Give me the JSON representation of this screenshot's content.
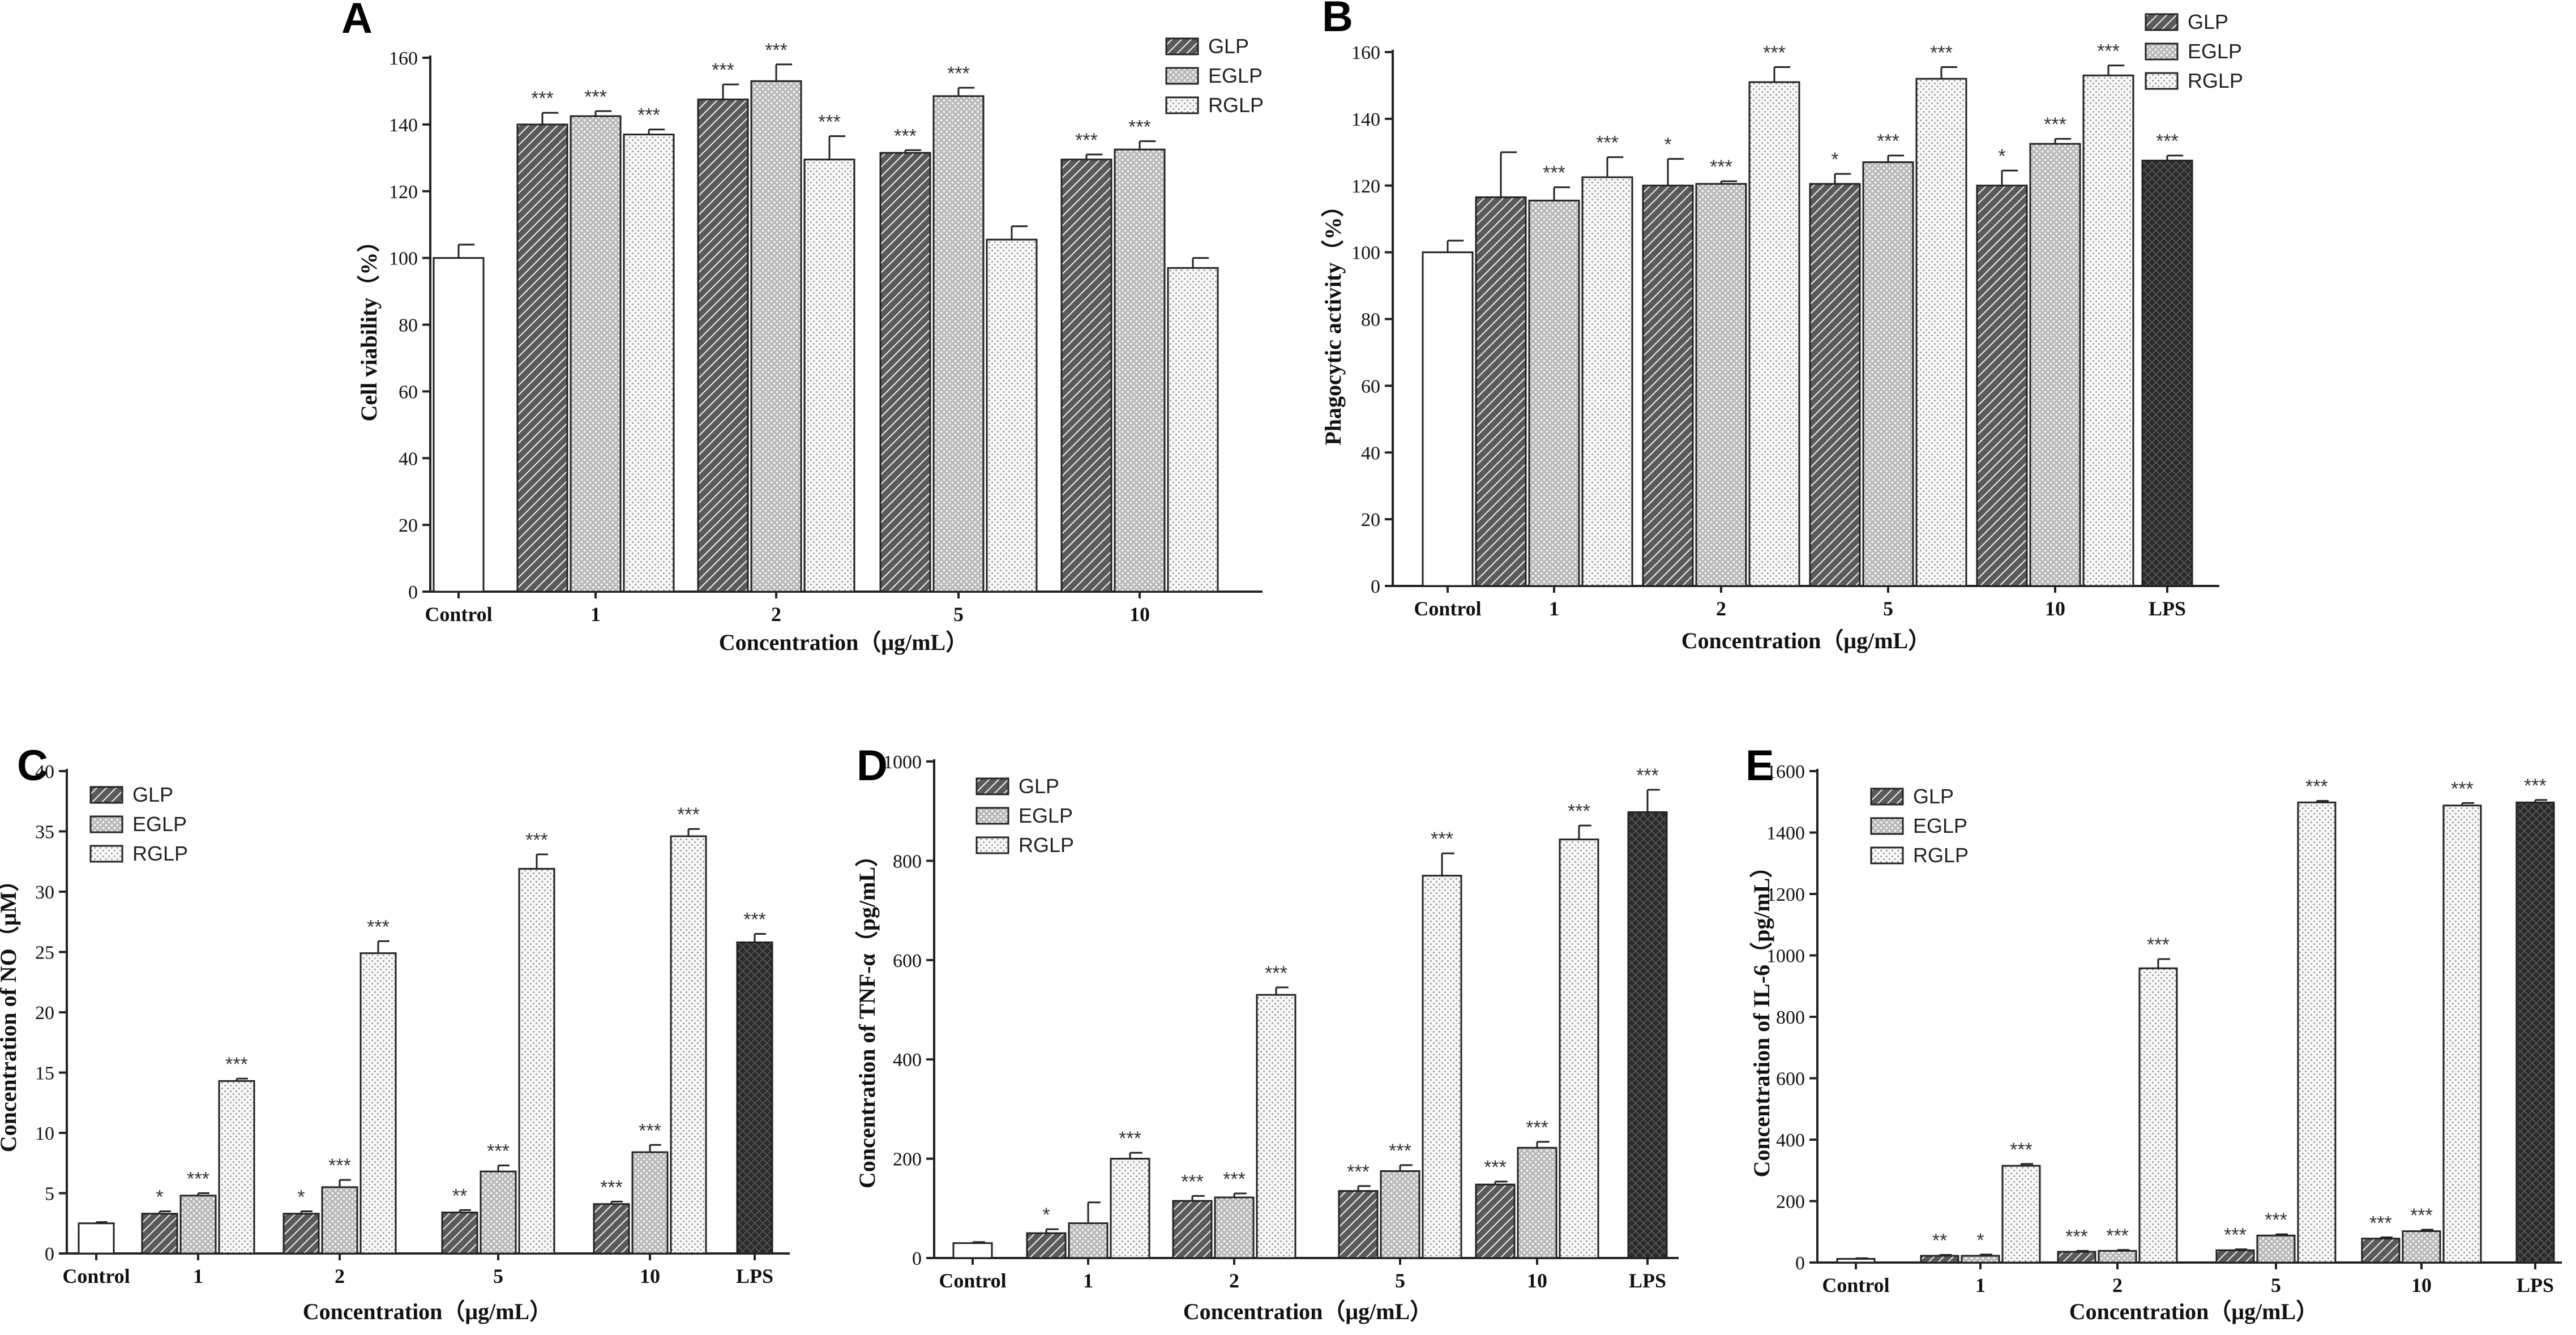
{
  "figure": {
    "legend_series": [
      "GLP",
      "EGLP",
      "RGLP"
    ],
    "series_patterns": {
      "GLP": "diagonal-hatch-dense",
      "EGLP": "dotted-grey",
      "RGLP": "light-dotted",
      "Control": "white",
      "LPS": "dark-crosshatch"
    },
    "colors": {
      "axis": "#222222",
      "bar_outline": "#222222",
      "background": "#ffffff"
    }
  },
  "chart_data": [
    {
      "id": "A",
      "type": "bar",
      "panel_label": "A",
      "xlabel": "Concentration（μg/mL）",
      "ylabel": "Cell viability（%）",
      "ylim": [
        0,
        160
      ],
      "yticks": [
        0,
        20,
        40,
        60,
        80,
        100,
        120,
        140,
        160
      ],
      "categories": [
        "Control",
        "1",
        "2",
        "5",
        "10"
      ],
      "legend": "top-right",
      "bars": [
        {
          "category": "Control",
          "series": "Control",
          "value": 100,
          "error": 4,
          "sig": ""
        },
        {
          "category": "1",
          "series": "GLP",
          "value": 140,
          "error": 3.5,
          "sig": "***"
        },
        {
          "category": "1",
          "series": "EGLP",
          "value": 142.5,
          "error": 1.5,
          "sig": "***"
        },
        {
          "category": "1",
          "series": "RGLP",
          "value": 137,
          "error": 1.5,
          "sig": "***"
        },
        {
          "category": "2",
          "series": "GLP",
          "value": 147.5,
          "error": 4.5,
          "sig": "***"
        },
        {
          "category": "2",
          "series": "EGLP",
          "value": 153,
          "error": 5,
          "sig": "***"
        },
        {
          "category": "2",
          "series": "RGLP",
          "value": 129.5,
          "error": 7,
          "sig": "***"
        },
        {
          "category": "5",
          "series": "GLP",
          "value": 131.5,
          "error": 0.8,
          "sig": "***"
        },
        {
          "category": "5",
          "series": "EGLP",
          "value": 148.5,
          "error": 2.5,
          "sig": "***"
        },
        {
          "category": "5",
          "series": "RGLP",
          "value": 105.5,
          "error": 4,
          "sig": ""
        },
        {
          "category": "10",
          "series": "GLP",
          "value": 129.5,
          "error": 1.5,
          "sig": "***"
        },
        {
          "category": "10",
          "series": "EGLP",
          "value": 132.5,
          "error": 2.5,
          "sig": "***"
        },
        {
          "category": "10",
          "series": "RGLP",
          "value": 97,
          "error": 3,
          "sig": ""
        }
      ]
    },
    {
      "id": "B",
      "type": "bar",
      "panel_label": "B",
      "xlabel": "Concentration（μg/mL）",
      "ylabel": "Phagocytic activity（%）",
      "ylim": [
        0,
        160
      ],
      "yticks": [
        0,
        20,
        40,
        60,
        80,
        100,
        120,
        140,
        160
      ],
      "categories": [
        "Control",
        "1",
        "2",
        "5",
        "10",
        "LPS"
      ],
      "legend": "top-right",
      "bars": [
        {
          "category": "Control",
          "series": "Control",
          "value": 100,
          "error": 3.5,
          "sig": ""
        },
        {
          "category": "1",
          "series": "GLP",
          "value": 116.5,
          "error": 13.5,
          "sig": ""
        },
        {
          "category": "1",
          "series": "EGLP",
          "value": 115.5,
          "error": 4,
          "sig": "***"
        },
        {
          "category": "1",
          "series": "RGLP",
          "value": 122.5,
          "error": 6,
          "sig": "***"
        },
        {
          "category": "2",
          "series": "GLP",
          "value": 120,
          "error": 8,
          "sig": "*"
        },
        {
          "category": "2",
          "series": "EGLP",
          "value": 120.5,
          "error": 0.8,
          "sig": "***"
        },
        {
          "category": "2",
          "series": "RGLP",
          "value": 151,
          "error": 4.5,
          "sig": "***"
        },
        {
          "category": "5",
          "series": "GLP",
          "value": 120.5,
          "error": 3,
          "sig": "*"
        },
        {
          "category": "5",
          "series": "EGLP",
          "value": 127,
          "error": 2,
          "sig": "***"
        },
        {
          "category": "5",
          "series": "RGLP",
          "value": 152,
          "error": 3.5,
          "sig": "***"
        },
        {
          "category": "10",
          "series": "GLP",
          "value": 120,
          "error": 4.5,
          "sig": "*"
        },
        {
          "category": "10",
          "series": "EGLP",
          "value": 132.5,
          "error": 1.5,
          "sig": "***"
        },
        {
          "category": "10",
          "series": "RGLP",
          "value": 153,
          "error": 3,
          "sig": "***"
        },
        {
          "category": "LPS",
          "series": "LPS",
          "value": 127.5,
          "error": 1.5,
          "sig": "***"
        }
      ]
    },
    {
      "id": "C",
      "type": "bar",
      "panel_label": "C",
      "xlabel": "Concentration（μg/mL）",
      "ylabel": "Concentration of NO（μM）",
      "ylim": [
        0,
        40
      ],
      "yticks": [
        0,
        5,
        10,
        15,
        20,
        25,
        30,
        35,
        40
      ],
      "categories": [
        "Control",
        "1",
        "2",
        "5",
        "10",
        "LPS"
      ],
      "legend": "top-left",
      "bars": [
        {
          "category": "Control",
          "series": "Control",
          "value": 2.5,
          "error": 0.1,
          "sig": ""
        },
        {
          "category": "1",
          "series": "GLP",
          "value": 3.3,
          "error": 0.2,
          "sig": "*"
        },
        {
          "category": "1",
          "series": "EGLP",
          "value": 4.8,
          "error": 0.2,
          "sig": "***"
        },
        {
          "category": "1",
          "series": "RGLP",
          "value": 14.3,
          "error": 0.2,
          "sig": "***"
        },
        {
          "category": "2",
          "series": "GLP",
          "value": 3.3,
          "error": 0.2,
          "sig": "*"
        },
        {
          "category": "2",
          "series": "EGLP",
          "value": 5.5,
          "error": 0.6,
          "sig": "***"
        },
        {
          "category": "2",
          "series": "RGLP",
          "value": 24.9,
          "error": 1,
          "sig": "***"
        },
        {
          "category": "5",
          "series": "GLP",
          "value": 3.4,
          "error": 0.2,
          "sig": "**"
        },
        {
          "category": "5",
          "series": "EGLP",
          "value": 6.8,
          "error": 0.5,
          "sig": "***"
        },
        {
          "category": "5",
          "series": "RGLP",
          "value": 31.9,
          "error": 1.2,
          "sig": "***"
        },
        {
          "category": "10",
          "series": "GLP",
          "value": 4.1,
          "error": 0.2,
          "sig": "***"
        },
        {
          "category": "10",
          "series": "EGLP",
          "value": 8.4,
          "error": 0.6,
          "sig": "***"
        },
        {
          "category": "10",
          "series": "RGLP",
          "value": 34.6,
          "error": 0.6,
          "sig": "***"
        },
        {
          "category": "LPS",
          "series": "LPS",
          "value": 25.8,
          "error": 0.7,
          "sig": "***"
        }
      ]
    },
    {
      "id": "D",
      "type": "bar",
      "panel_label": "D",
      "xlabel": "Concentration（μg/mL）",
      "ylabel": "Concentration of TNF-α（pg/mL）",
      "ylim": [
        0,
        1000
      ],
      "yticks": [
        0,
        200,
        400,
        600,
        800,
        1000
      ],
      "categories": [
        "Control",
        "1",
        "2",
        "5",
        "10",
        "LPS"
      ],
      "legend": "top-left",
      "bars": [
        {
          "category": "Control",
          "series": "Control",
          "value": 30,
          "error": 2,
          "sig": ""
        },
        {
          "category": "1",
          "series": "GLP",
          "value": 50,
          "error": 8,
          "sig": "*"
        },
        {
          "category": "1",
          "series": "EGLP",
          "value": 70,
          "error": 42,
          "sig": ""
        },
        {
          "category": "1",
          "series": "RGLP",
          "value": 200,
          "error": 12,
          "sig": "***"
        },
        {
          "category": "2",
          "series": "GLP",
          "value": 115,
          "error": 10,
          "sig": "***"
        },
        {
          "category": "2",
          "series": "EGLP",
          "value": 122,
          "error": 8,
          "sig": "***"
        },
        {
          "category": "2",
          "series": "RGLP",
          "value": 530,
          "error": 15,
          "sig": "***"
        },
        {
          "category": "5",
          "series": "GLP",
          "value": 135,
          "error": 10,
          "sig": "***"
        },
        {
          "category": "5",
          "series": "EGLP",
          "value": 175,
          "error": 12,
          "sig": "***"
        },
        {
          "category": "5",
          "series": "RGLP",
          "value": 770,
          "error": 45,
          "sig": "***"
        },
        {
          "category": "10",
          "series": "GLP",
          "value": 148,
          "error": 6,
          "sig": "***"
        },
        {
          "category": "10",
          "series": "EGLP",
          "value": 222,
          "error": 12,
          "sig": "***"
        },
        {
          "category": "10",
          "series": "RGLP",
          "value": 843,
          "error": 28,
          "sig": "***"
        },
        {
          "category": "LPS",
          "series": "LPS",
          "value": 898,
          "error": 45,
          "sig": "***"
        }
      ]
    },
    {
      "id": "E",
      "type": "bar",
      "panel_label": "E",
      "xlabel": "Concentration（μg/mL）",
      "ylabel": "Concentration of IL-6（pg/mL）",
      "ylim": [
        0,
        1600
      ],
      "yticks": [
        0,
        200,
        400,
        600,
        800,
        1000,
        1200,
        1400,
        1600
      ],
      "categories": [
        "Control",
        "1",
        "2",
        "5",
        "10",
        "LPS"
      ],
      "legend": "top-left",
      "bars": [
        {
          "category": "Control",
          "series": "Control",
          "value": 12,
          "error": 2,
          "sig": ""
        },
        {
          "category": "1",
          "series": "GLP",
          "value": 22,
          "error": 3,
          "sig": "**"
        },
        {
          "category": "1",
          "series": "EGLP",
          "value": 22,
          "error": 4,
          "sig": "*"
        },
        {
          "category": "1",
          "series": "RGLP",
          "value": 315,
          "error": 6,
          "sig": "***"
        },
        {
          "category": "2",
          "series": "GLP",
          "value": 35,
          "error": 3,
          "sig": "***"
        },
        {
          "category": "2",
          "series": "EGLP",
          "value": 38,
          "error": 3,
          "sig": "***"
        },
        {
          "category": "2",
          "series": "RGLP",
          "value": 958,
          "error": 30,
          "sig": "***"
        },
        {
          "category": "5",
          "series": "GLP",
          "value": 40,
          "error": 3,
          "sig": "***"
        },
        {
          "category": "5",
          "series": "EGLP",
          "value": 88,
          "error": 4,
          "sig": "***"
        },
        {
          "category": "5",
          "series": "RGLP",
          "value": 1498,
          "error": 5,
          "sig": "***"
        },
        {
          "category": "10",
          "series": "GLP",
          "value": 78,
          "error": 4,
          "sig": "***"
        },
        {
          "category": "10",
          "series": "EGLP",
          "value": 102,
          "error": 5,
          "sig": "***"
        },
        {
          "category": "10",
          "series": "RGLP",
          "value": 1488,
          "error": 8,
          "sig": "***"
        },
        {
          "category": "LPS",
          "series": "LPS",
          "value": 1498,
          "error": 8,
          "sig": "***"
        }
      ]
    }
  ]
}
